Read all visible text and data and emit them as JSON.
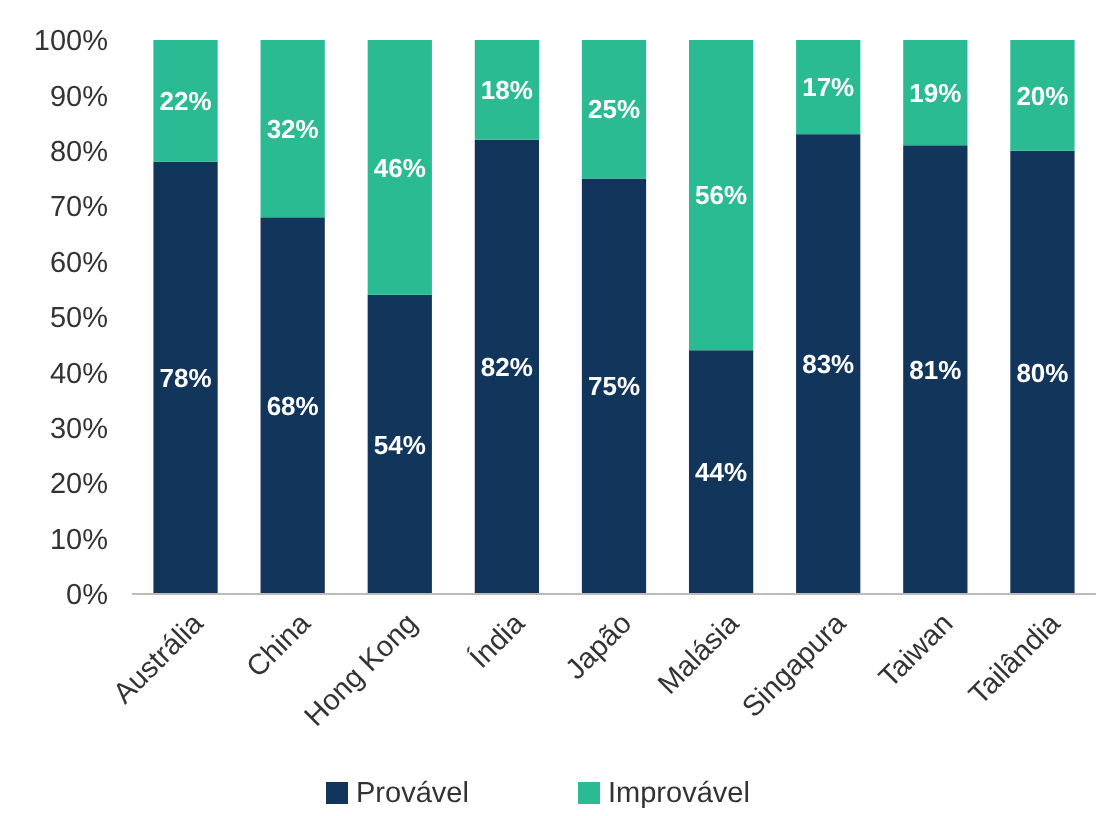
{
  "chart_data": {
    "type": "bar",
    "stacked": true,
    "categories": [
      "Austrália",
      "China",
      "Hong Kong",
      "Índia",
      "Japão",
      "Malásia",
      "Singapura",
      "Taiwan",
      "Tailândia"
    ],
    "series": [
      {
        "name": "Provável",
        "color": "#12355b",
        "values": [
          78,
          68,
          54,
          82,
          75,
          44,
          83,
          81,
          80
        ],
        "value_labels": [
          "78%",
          "68%",
          "54%",
          "82%",
          "75%",
          "44%",
          "83%",
          "81%",
          "80%"
        ]
      },
      {
        "name": "Improvável",
        "color": "#2bbb92",
        "values": [
          22,
          32,
          46,
          18,
          25,
          56,
          17,
          19,
          20
        ],
        "value_labels": [
          "22%",
          "32%",
          "46%",
          "18%",
          "25%",
          "56%",
          "17%",
          "19%",
          "20%"
        ]
      }
    ],
    "ylim": [
      0,
      100
    ],
    "yticks": [
      {
        "value": 0,
        "label": "0%"
      },
      {
        "value": 10,
        "label": "10%"
      },
      {
        "value": 20,
        "label": "20%"
      },
      {
        "value": 30,
        "label": "30%"
      },
      {
        "value": 40,
        "label": "40%"
      },
      {
        "value": 50,
        "label": "50%"
      },
      {
        "value": 60,
        "label": "60%"
      },
      {
        "value": 70,
        "label": "70%"
      },
      {
        "value": 80,
        "label": "80%"
      },
      {
        "value": 90,
        "label": "90%"
      },
      {
        "value": 100,
        "label": "100%"
      }
    ],
    "grid": false,
    "legend": "bottom"
  }
}
